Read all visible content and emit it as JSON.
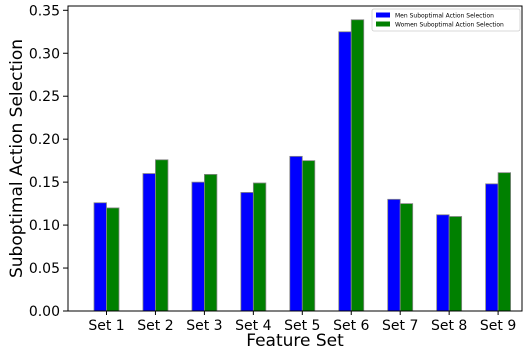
{
  "chart_data": {
    "type": "bar",
    "categories": [
      "Set 1",
      "Set 2",
      "Set 3",
      "Set 4",
      "Set 5",
      "Set 6",
      "Set 7",
      "Set 8",
      "Set 9"
    ],
    "series": [
      {
        "name": "Men Suboptimal Action Selection",
        "color": "#0000ff",
        "values": [
          0.126,
          0.16,
          0.15,
          0.138,
          0.18,
          0.325,
          0.13,
          0.112,
          0.148
        ]
      },
      {
        "name": "Women Suboptimal Action Selection",
        "color": "#008000",
        "values": [
          0.12,
          0.176,
          0.159,
          0.149,
          0.175,
          0.339,
          0.125,
          0.11,
          0.161
        ]
      }
    ],
    "xlabel": "Feature Set",
    "ylabel": "Suboptimal Action Selection",
    "ylim": [
      0,
      0.355
    ],
    "yticks": [
      "0.00",
      "0.05",
      "0.10",
      "0.15",
      "0.20",
      "0.25",
      "0.30",
      "0.35"
    ],
    "grid": false,
    "legend_position": "top-right"
  }
}
